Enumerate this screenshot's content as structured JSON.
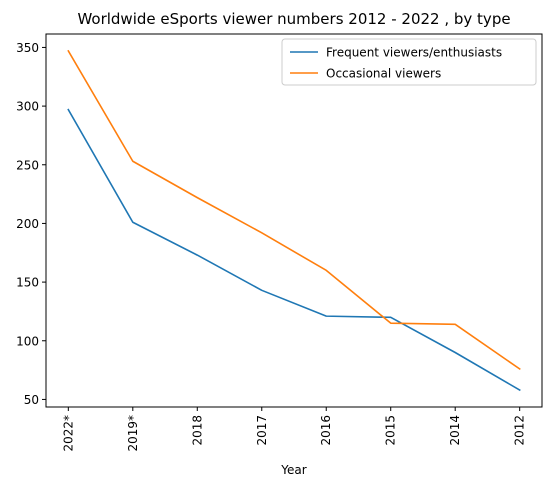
{
  "chart_data": {
    "type": "line",
    "title": "Worldwide eSports viewer numbers 2012 - 2022 , by type",
    "xlabel": "Year",
    "ylabel": "",
    "categories": [
      "2022*",
      "2019*",
      "2018",
      "2017",
      "2016",
      "2015",
      "2014",
      "2012"
    ],
    "series": [
      {
        "name": "Frequent viewers/enthusiasts",
        "color": "#1f77b4",
        "values": [
          297,
          201,
          173,
          143,
          121,
          120,
          90,
          58
        ]
      },
      {
        "name": "Occasional viewers",
        "color": "#ff7f0e",
        "values": [
          347,
          253,
          222,
          192,
          160,
          115,
          114,
          76
        ]
      }
    ],
    "yticks": [
      50,
      100,
      150,
      200,
      250,
      300,
      350
    ],
    "ylim": [
      43.55,
      361.45
    ],
    "grid": false,
    "legend": "top-right"
  }
}
